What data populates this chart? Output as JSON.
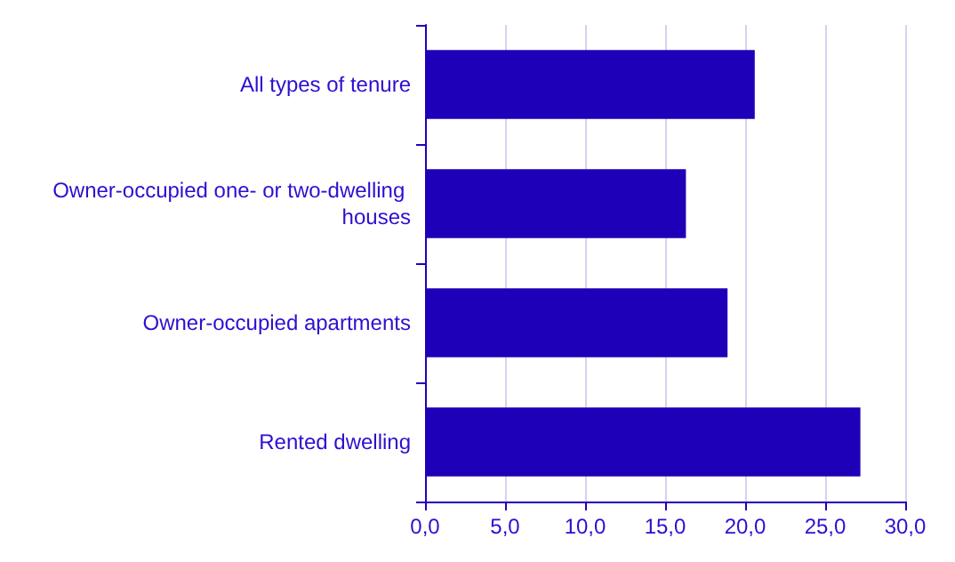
{
  "chart_data": {
    "type": "bar",
    "orientation": "horizontal",
    "categories": [
      "All types of tenure",
      "Owner-occupied one- or two-dwelling houses",
      "Owner-occupied apartments",
      "Rented dwelling"
    ],
    "values": [
      20.6,
      16.3,
      18.9,
      27.2
    ],
    "color": "#1f00b9",
    "xlim": [
      0,
      30
    ],
    "xticks": [
      {
        "value": 0,
        "label": "0,0"
      },
      {
        "value": 5,
        "label": "5,0"
      },
      {
        "value": 10,
        "label": "10,0"
      },
      {
        "value": 15,
        "label": "15,0"
      },
      {
        "value": 20,
        "label": "20,0"
      },
      {
        "value": 25,
        "label": "25,0"
      },
      {
        "value": 30,
        "label": "30,0"
      }
    ],
    "grid": "x"
  }
}
